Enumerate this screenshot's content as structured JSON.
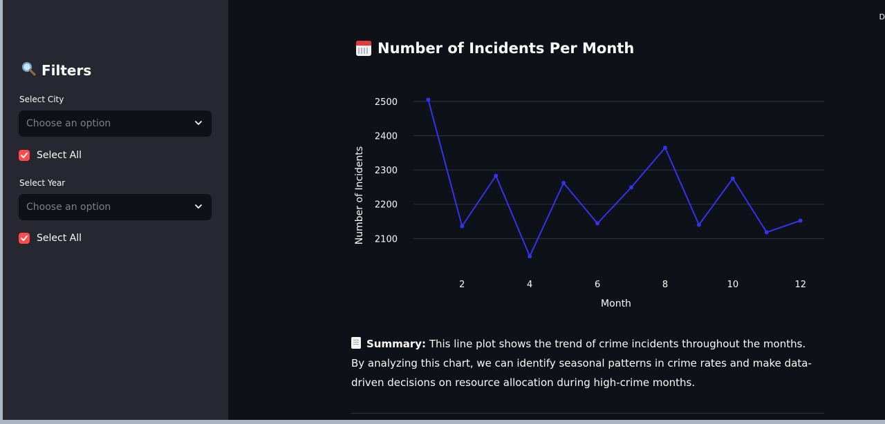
{
  "sidebar": {
    "title": "Filters",
    "title_icon": "search-icon",
    "city": {
      "label": "Select City",
      "placeholder": "Choose an option",
      "select_all_label": "Select All",
      "select_all_checked": true
    },
    "year": {
      "label": "Select Year",
      "placeholder": "Choose an option",
      "select_all_label": "Select All",
      "select_all_checked": true
    }
  },
  "header": {
    "corner_text": "D"
  },
  "main": {
    "chart_title": "Number of Incidents Per Month",
    "chart_title_icon": "calendar-icon",
    "summary_icon": "document-icon",
    "summary_label": "Summary:",
    "summary_text": " This line plot shows the trend of crime incidents throughout the months. By analyzing this chart, we can identify seasonal patterns in crime rates and make data-driven decisions on resource allocation during high-crime months."
  },
  "colors": {
    "accent": "#ff4b4b",
    "line": "#3333ee",
    "background": "#0e1117",
    "sidebar": "#262730"
  },
  "chart_data": {
    "type": "line",
    "title": "",
    "xlabel": "Month",
    "ylabel": "Number of Incidents",
    "x": [
      1,
      2,
      3,
      4,
      5,
      6,
      7,
      8,
      9,
      10,
      11,
      12
    ],
    "values": [
      2505,
      2136,
      2283,
      2048,
      2262,
      2144,
      2249,
      2365,
      2140,
      2275,
      2118,
      2152
    ],
    "xticks": [
      2,
      4,
      6,
      8,
      10,
      12
    ],
    "yticks": [
      2100,
      2200,
      2300,
      2400,
      2500
    ],
    "xlim": [
      0.4,
      12.7
    ],
    "ylim": [
      2010,
      2530
    ],
    "grid": true
  }
}
